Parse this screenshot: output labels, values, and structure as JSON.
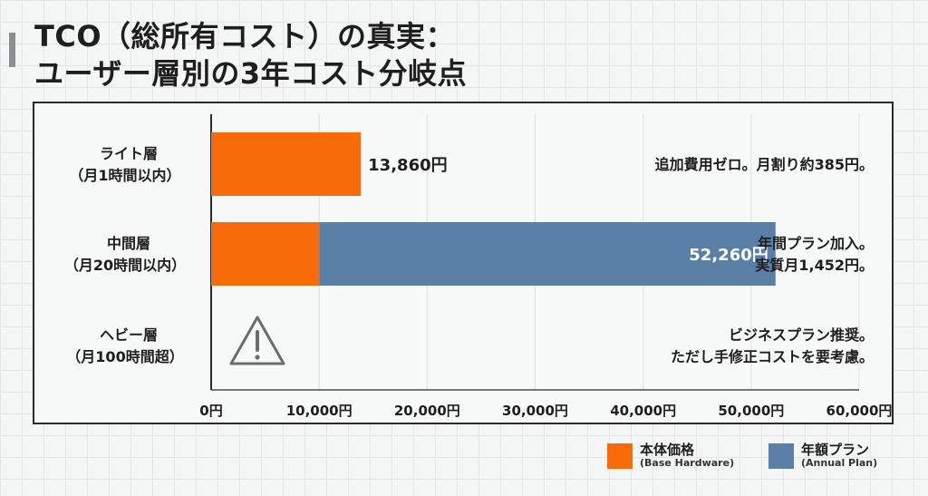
{
  "title": {
    "line1": "TCO（総所有コスト）の真実：",
    "line2": "ユーザー層別の3年コスト分岐点"
  },
  "chart_data": {
    "type": "bar",
    "orientation": "horizontal",
    "stacked": true,
    "categories": [
      {
        "line1": "ライト層",
        "line2": "（月1時間以内）"
      },
      {
        "line1": "中間層",
        "line2": "（月20時間以内）"
      },
      {
        "line1": "ヘビー層",
        "line2": "（月100時間超）"
      }
    ],
    "series": [
      {
        "name": "本体価格",
        "name_en": "(Base Hardware)",
        "color": "#f76b0a",
        "values": [
          13860,
          10000,
          null
        ]
      },
      {
        "name": "年額プラン",
        "name_en": "(Annual Plan)",
        "color": "#5a7fa6",
        "values": [
          0,
          42260,
          null
        ]
      }
    ],
    "totals": [
      "13,860円",
      "52,260円",
      null
    ],
    "notes": [
      [
        "追加費用ゼロ。月割り約385円。"
      ],
      [
        "年間プラン加入。",
        "実質月1,452円。"
      ],
      [
        "ビジネスプラン推奨。",
        "ただし手修正コストを要考慮。"
      ]
    ],
    "warning_icon": "warning-triangle-icon",
    "xlim": [
      0,
      60000
    ],
    "x_ticks": [
      0,
      10000,
      20000,
      30000,
      40000,
      50000,
      60000
    ],
    "x_tick_labels": [
      "0円",
      "10,000円",
      "20,000円",
      "30,000円",
      "40,000円",
      "50,000円",
      "60,000円"
    ],
    "grid": true,
    "legend_position": "bottom-right"
  }
}
